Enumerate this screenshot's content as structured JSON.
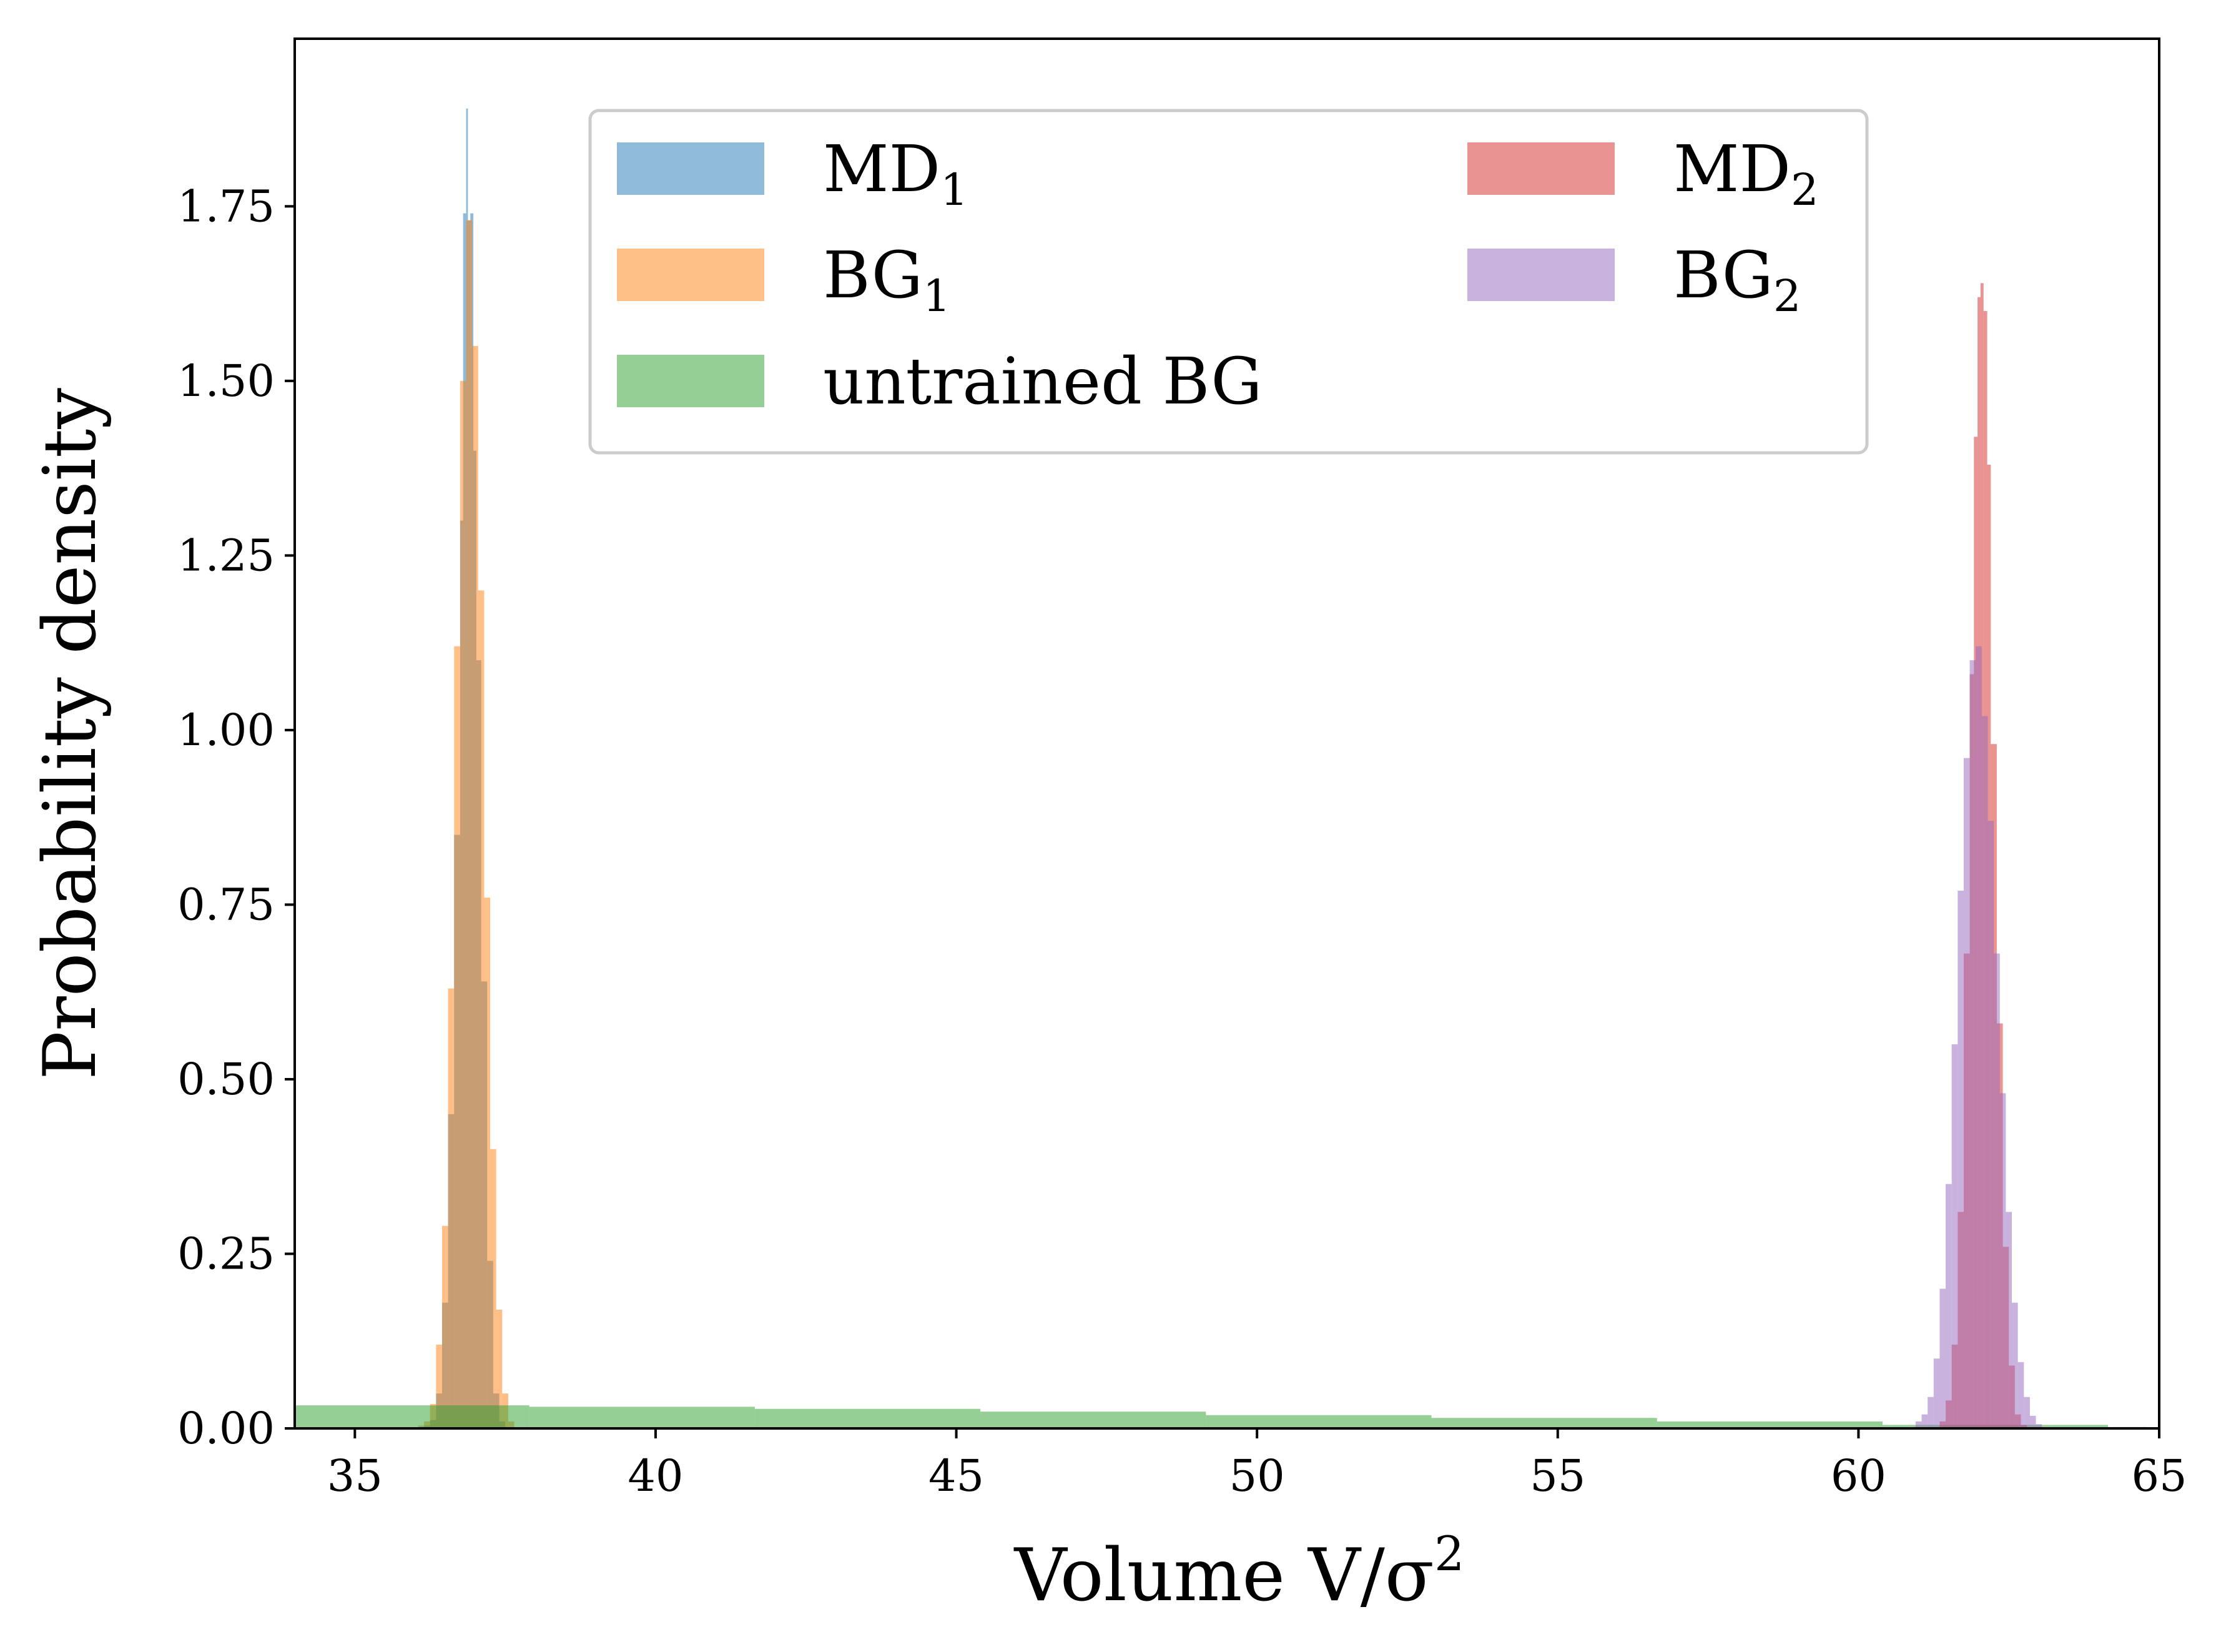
{
  "chart_data": {
    "type": "histogram",
    "title": "",
    "xlabel": "Volume V/σ",
    "xlabel_superscript": "2",
    "ylabel": "Probability density",
    "xlim": [
      34,
      65
    ],
    "ylim": [
      0,
      1.99
    ],
    "x_ticks": [
      {
        "value": 35,
        "label": "35"
      },
      {
        "value": 40,
        "label": "40"
      },
      {
        "value": 45,
        "label": "45"
      },
      {
        "value": 50,
        "label": "50"
      },
      {
        "value": 55,
        "label": "55"
      },
      {
        "value": 60,
        "label": "60"
      },
      {
        "value": 65,
        "label": "65"
      }
    ],
    "y_ticks": [
      {
        "value": 0,
        "label": "0.00"
      },
      {
        "value": 0.25,
        "label": "0.25"
      },
      {
        "value": 0.5,
        "label": "0.50"
      },
      {
        "value": 0.75,
        "label": "0.75"
      },
      {
        "value": 1.0,
        "label": "1.00"
      },
      {
        "value": 1.25,
        "label": "1.25"
      },
      {
        "value": 1.5,
        "label": "1.50"
      },
      {
        "value": 1.75,
        "label": "1.75"
      }
    ],
    "legend": {
      "placement": "upper-center",
      "columns": 2
    },
    "series": [
      {
        "name": "MD",
        "subscript": "1",
        "color": "#1f77b4",
        "alpha": 0.5,
        "bins": [
          [
            36.15,
            36.25,
            0.004
          ],
          [
            36.25,
            36.35,
            0.012
          ],
          [
            36.35,
            36.45,
            0.05
          ],
          [
            36.45,
            36.55,
            0.18
          ],
          [
            36.55,
            36.65,
            0.45
          ],
          [
            36.65,
            36.75,
            0.85
          ],
          [
            36.75,
            36.8,
            1.3
          ],
          [
            36.8,
            36.85,
            1.74
          ],
          [
            36.85,
            36.88,
            1.89
          ],
          [
            36.88,
            36.92,
            1.73
          ],
          [
            36.92,
            36.97,
            1.74
          ],
          [
            36.97,
            37.02,
            1.4
          ],
          [
            37.02,
            37.1,
            1.1
          ],
          [
            37.1,
            37.2,
            0.64
          ],
          [
            37.2,
            37.3,
            0.24
          ],
          [
            37.3,
            37.4,
            0.05
          ],
          [
            37.4,
            37.5,
            0.01
          ]
        ]
      },
      {
        "name": "BG",
        "subscript": "1",
        "color": "#ff7f0e",
        "alpha": 0.5,
        "bins": [
          [
            36.05,
            36.15,
            0.004
          ],
          [
            36.15,
            36.25,
            0.01
          ],
          [
            36.25,
            36.35,
            0.035
          ],
          [
            36.35,
            36.45,
            0.12
          ],
          [
            36.45,
            36.55,
            0.29
          ],
          [
            36.55,
            36.65,
            0.63
          ],
          [
            36.65,
            36.75,
            1.12
          ],
          [
            36.75,
            36.85,
            1.5
          ],
          [
            36.85,
            36.95,
            1.73
          ],
          [
            36.95,
            37.05,
            1.55
          ],
          [
            37.05,
            37.15,
            1.2
          ],
          [
            37.15,
            37.25,
            0.76
          ],
          [
            37.25,
            37.35,
            0.4
          ],
          [
            37.35,
            37.45,
            0.17
          ],
          [
            37.45,
            37.55,
            0.05
          ],
          [
            37.55,
            37.65,
            0.01
          ]
        ]
      },
      {
        "name": "untrained BG",
        "subscript": "",
        "color": "#2ca02c",
        "alpha": 0.5,
        "bins": [
          [
            34.0,
            37.9,
            0.033
          ],
          [
            37.9,
            41.65,
            0.031
          ],
          [
            41.65,
            45.4,
            0.028
          ],
          [
            45.4,
            49.15,
            0.024
          ],
          [
            49.15,
            52.9,
            0.019
          ],
          [
            52.9,
            56.65,
            0.015
          ],
          [
            56.65,
            60.4,
            0.01
          ],
          [
            60.4,
            64.15,
            0.005
          ],
          [
            64.15,
            64.8,
            0.002
          ]
        ]
      },
      {
        "name": "MD",
        "subscript": "2",
        "color": "#d62728",
        "alpha": 0.5,
        "bins": [
          [
            61.35,
            61.45,
            0.01
          ],
          [
            61.45,
            61.55,
            0.04
          ],
          [
            61.55,
            61.65,
            0.12
          ],
          [
            61.65,
            61.75,
            0.31
          ],
          [
            61.75,
            61.85,
            0.68
          ],
          [
            61.85,
            61.92,
            1.08
          ],
          [
            61.92,
            61.98,
            1.42
          ],
          [
            61.98,
            62.03,
            1.62
          ],
          [
            62.03,
            62.08,
            1.64
          ],
          [
            62.08,
            62.14,
            1.6
          ],
          [
            62.14,
            62.2,
            1.38
          ],
          [
            62.2,
            62.3,
            0.98
          ],
          [
            62.3,
            62.4,
            0.58
          ],
          [
            62.4,
            62.5,
            0.26
          ],
          [
            62.5,
            62.6,
            0.09
          ],
          [
            62.6,
            62.7,
            0.02
          ],
          [
            62.7,
            62.8,
            0.005
          ]
        ]
      },
      {
        "name": "BG",
        "subscript": "2",
        "color": "#9467bd",
        "alpha": 0.5,
        "bins": [
          [
            60.95,
            61.05,
            0.01
          ],
          [
            61.05,
            61.15,
            0.02
          ],
          [
            61.15,
            61.25,
            0.045
          ],
          [
            61.25,
            61.35,
            0.1
          ],
          [
            61.35,
            61.45,
            0.2
          ],
          [
            61.45,
            61.55,
            0.35
          ],
          [
            61.55,
            61.65,
            0.55
          ],
          [
            61.65,
            61.75,
            0.77
          ],
          [
            61.75,
            61.85,
            0.96
          ],
          [
            61.85,
            61.95,
            1.1
          ],
          [
            61.95,
            62.05,
            1.12
          ],
          [
            62.05,
            62.15,
            1.02
          ],
          [
            62.15,
            62.25,
            0.87
          ],
          [
            62.25,
            62.35,
            0.68
          ],
          [
            62.35,
            62.45,
            0.48
          ],
          [
            62.45,
            62.55,
            0.31
          ],
          [
            62.55,
            62.65,
            0.18
          ],
          [
            62.65,
            62.75,
            0.095
          ],
          [
            62.75,
            62.85,
            0.045
          ],
          [
            62.85,
            62.95,
            0.018
          ],
          [
            62.95,
            63.05,
            0.006
          ]
        ]
      }
    ]
  }
}
